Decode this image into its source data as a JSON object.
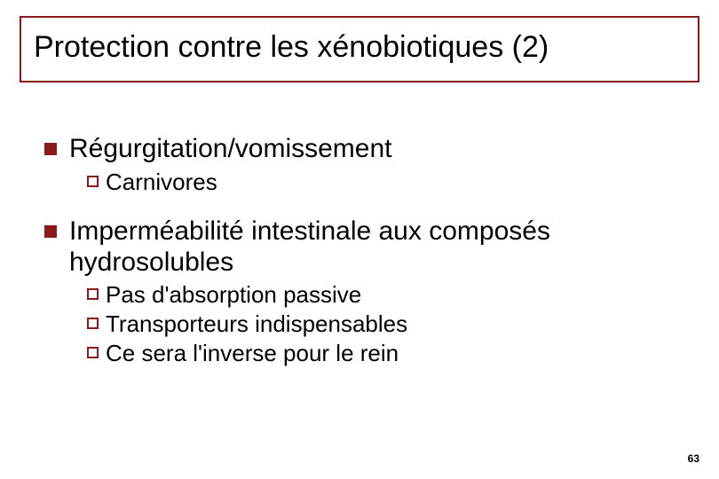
{
  "slide": {
    "title": "Protection contre les xénobiotiques (2)",
    "title_color": "#000000",
    "title_border_color": "#8b1a1a",
    "title_fontsize": 34,
    "accent_color": "#8b1a1a",
    "background_color": "#ffffff",
    "level1_fontsize": 30,
    "level2_fontsize": 26,
    "page_number": "63",
    "items": [
      {
        "text": "Régurgitation/vomissement",
        "children": [
          {
            "text": "Carnivores"
          }
        ]
      },
      {
        "text": "Imperméabilité intestinale aux composés hydrosolubles",
        "children": [
          {
            "text": "Pas d'absorption passive"
          },
          {
            "text": "Transporteurs indispensables"
          },
          {
            "text": "Ce sera l'inverse pour le rein"
          }
        ]
      }
    ]
  }
}
